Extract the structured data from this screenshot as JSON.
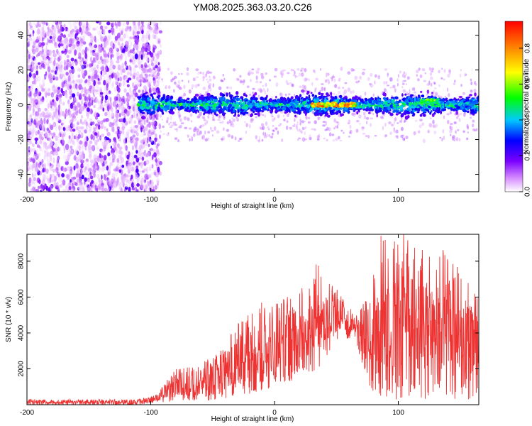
{
  "title": "YM08.2025.363.03.20.C26",
  "chart_data": [
    {
      "type": "heatmap",
      "xlabel": "Height of straight line (km)",
      "ylabel": "Frequency (Hz)",
      "xlim": [
        -200,
        165
      ],
      "ylim": [
        -50,
        48
      ],
      "xticks": [
        -200,
        -100,
        0,
        100
      ],
      "yticks": [
        -40,
        -20,
        0,
        20,
        40
      ],
      "colorbar": {
        "label": "Normalized spectral amplitude",
        "range": [
          0,
          0.95
        ],
        "ticks": [
          0.0,
          0.2,
          0.4,
          0.6,
          0.8
        ]
      },
      "features": [
        {
          "name": "scattered noise",
          "x_range": [
            -200,
            -100
          ],
          "amplitude": 0.12
        },
        {
          "name": "signal band",
          "x_range": [
            -110,
            165
          ],
          "center_frequency": 0,
          "half_width_hz": 8,
          "amplitude": 0.4
        },
        {
          "name": "peak region",
          "x_range": [
            30,
            65
          ],
          "center_frequency": 0,
          "amplitude": 0.92
        },
        {
          "name": "peak region",
          "x_range": [
            118,
            132
          ],
          "center_frequency": 2,
          "amplitude": 0.65
        }
      ]
    },
    {
      "type": "line",
      "xlabel": "Height of straight line (km)",
      "ylabel": "SNR (10 * v/v)",
      "xlim": [
        -200,
        165
      ],
      "ylim": [
        0,
        9500
      ],
      "xticks": [
        -200,
        -100,
        0,
        100
      ],
      "yticks": [
        2000,
        4000,
        6000,
        8000
      ],
      "color": "#ee3333",
      "envelope": [
        {
          "x": -200,
          "low": 0,
          "high": 300
        },
        {
          "x": -110,
          "low": 0,
          "high": 300
        },
        {
          "x": -95,
          "low": 100,
          "high": 600
        },
        {
          "x": -80,
          "low": 200,
          "high": 2000
        },
        {
          "x": -60,
          "low": 200,
          "high": 2200
        },
        {
          "x": -40,
          "low": 300,
          "high": 3500
        },
        {
          "x": -20,
          "low": 600,
          "high": 5500
        },
        {
          "x": 0,
          "low": 1000,
          "high": 6000
        },
        {
          "x": 20,
          "low": 1500,
          "high": 6500
        },
        {
          "x": 35,
          "low": 2000,
          "high": 8000
        },
        {
          "x": 50,
          "low": 3500,
          "high": 6500
        },
        {
          "x": 65,
          "low": 3800,
          "high": 5000
        },
        {
          "x": 75,
          "low": 1000,
          "high": 6000
        },
        {
          "x": 85,
          "low": 300,
          "high": 9500
        },
        {
          "x": 110,
          "low": 300,
          "high": 9500
        },
        {
          "x": 140,
          "low": 300,
          "high": 8500
        },
        {
          "x": 165,
          "low": 300,
          "high": 6000
        }
      ]
    }
  ]
}
